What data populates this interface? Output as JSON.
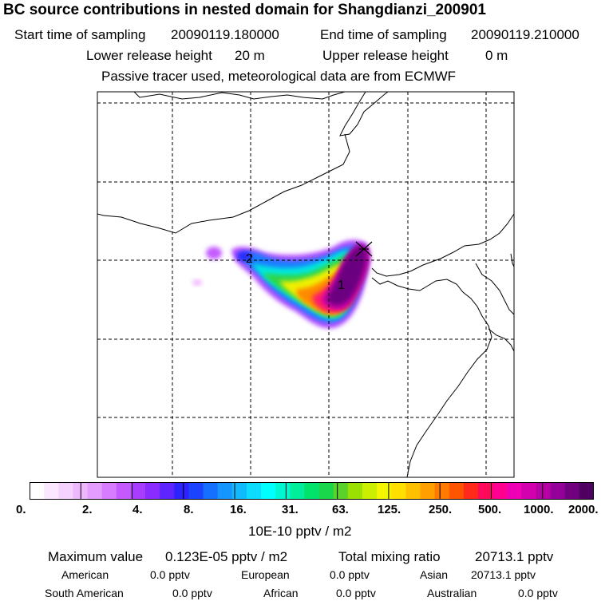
{
  "title": "BC  source contributions in nested domain for Shangdianzi_200901",
  "header": {
    "start_label": "Start time of sampling",
    "start_value": "20090119.180000",
    "end_label": "End time of sampling",
    "end_value": "20090119.210000",
    "lower_label": "Lower release height",
    "lower_value": "20 m",
    "upper_label": "Upper release height",
    "upper_value": "0 m",
    "note": "Passive tracer used, meteorological data are from ECMWF"
  },
  "map": {
    "markers": [
      {
        "label": "1"
      },
      {
        "label": "2"
      }
    ],
    "receptor_marker": "x-cross-icon"
  },
  "colorbar": {
    "tick_labels": [
      "0.",
      "2.",
      "4.",
      "8.",
      "16.",
      "31.",
      "63.",
      "125.",
      "250.",
      "500.",
      "1000.",
      "2000."
    ],
    "units": "10E-10 pptv / m2",
    "colors": [
      "#ffffff",
      "#fbe7ff",
      "#f5d2ff",
      "#eeb8ff",
      "#e59cff",
      "#d77cff",
      "#c459ff",
      "#a83dff",
      "#8a2bff",
      "#5e25ff",
      "#2d23ff",
      "#1c43ff",
      "#1670ff",
      "#1596ff",
      "#11b9ff",
      "#0ddcff",
      "#00ffff",
      "#00f6d0",
      "#00ee9c",
      "#00e36a",
      "#1ad64a",
      "#5ad22a",
      "#9ae000",
      "#ccee00",
      "#f4f500",
      "#ffe000",
      "#ffc000",
      "#ffa000",
      "#ff7b00",
      "#ff5400",
      "#ff2a1a",
      "#ff0a5a",
      "#ff0090",
      "#ee00b4",
      "#d300b0",
      "#b600a6",
      "#94009a",
      "#700080",
      "#4f0060"
    ]
  },
  "stats": {
    "max_label": "Maximum value",
    "max_value": "0.123E-05 pptv / m2",
    "total_label": "Total mixing ratio",
    "total_value": "20713.1 pptv"
  },
  "regions": [
    {
      "name": "American",
      "value": "0.0 pptv"
    },
    {
      "name": "European",
      "value": "0.0 pptv"
    },
    {
      "name": "Asian",
      "value": "20713.1 pptv"
    },
    {
      "name": "South American",
      "value": "0.0 pptv"
    },
    {
      "name": "African",
      "value": "0.0 pptv"
    },
    {
      "name": "Australian",
      "value": "0.0 pptv"
    }
  ]
}
